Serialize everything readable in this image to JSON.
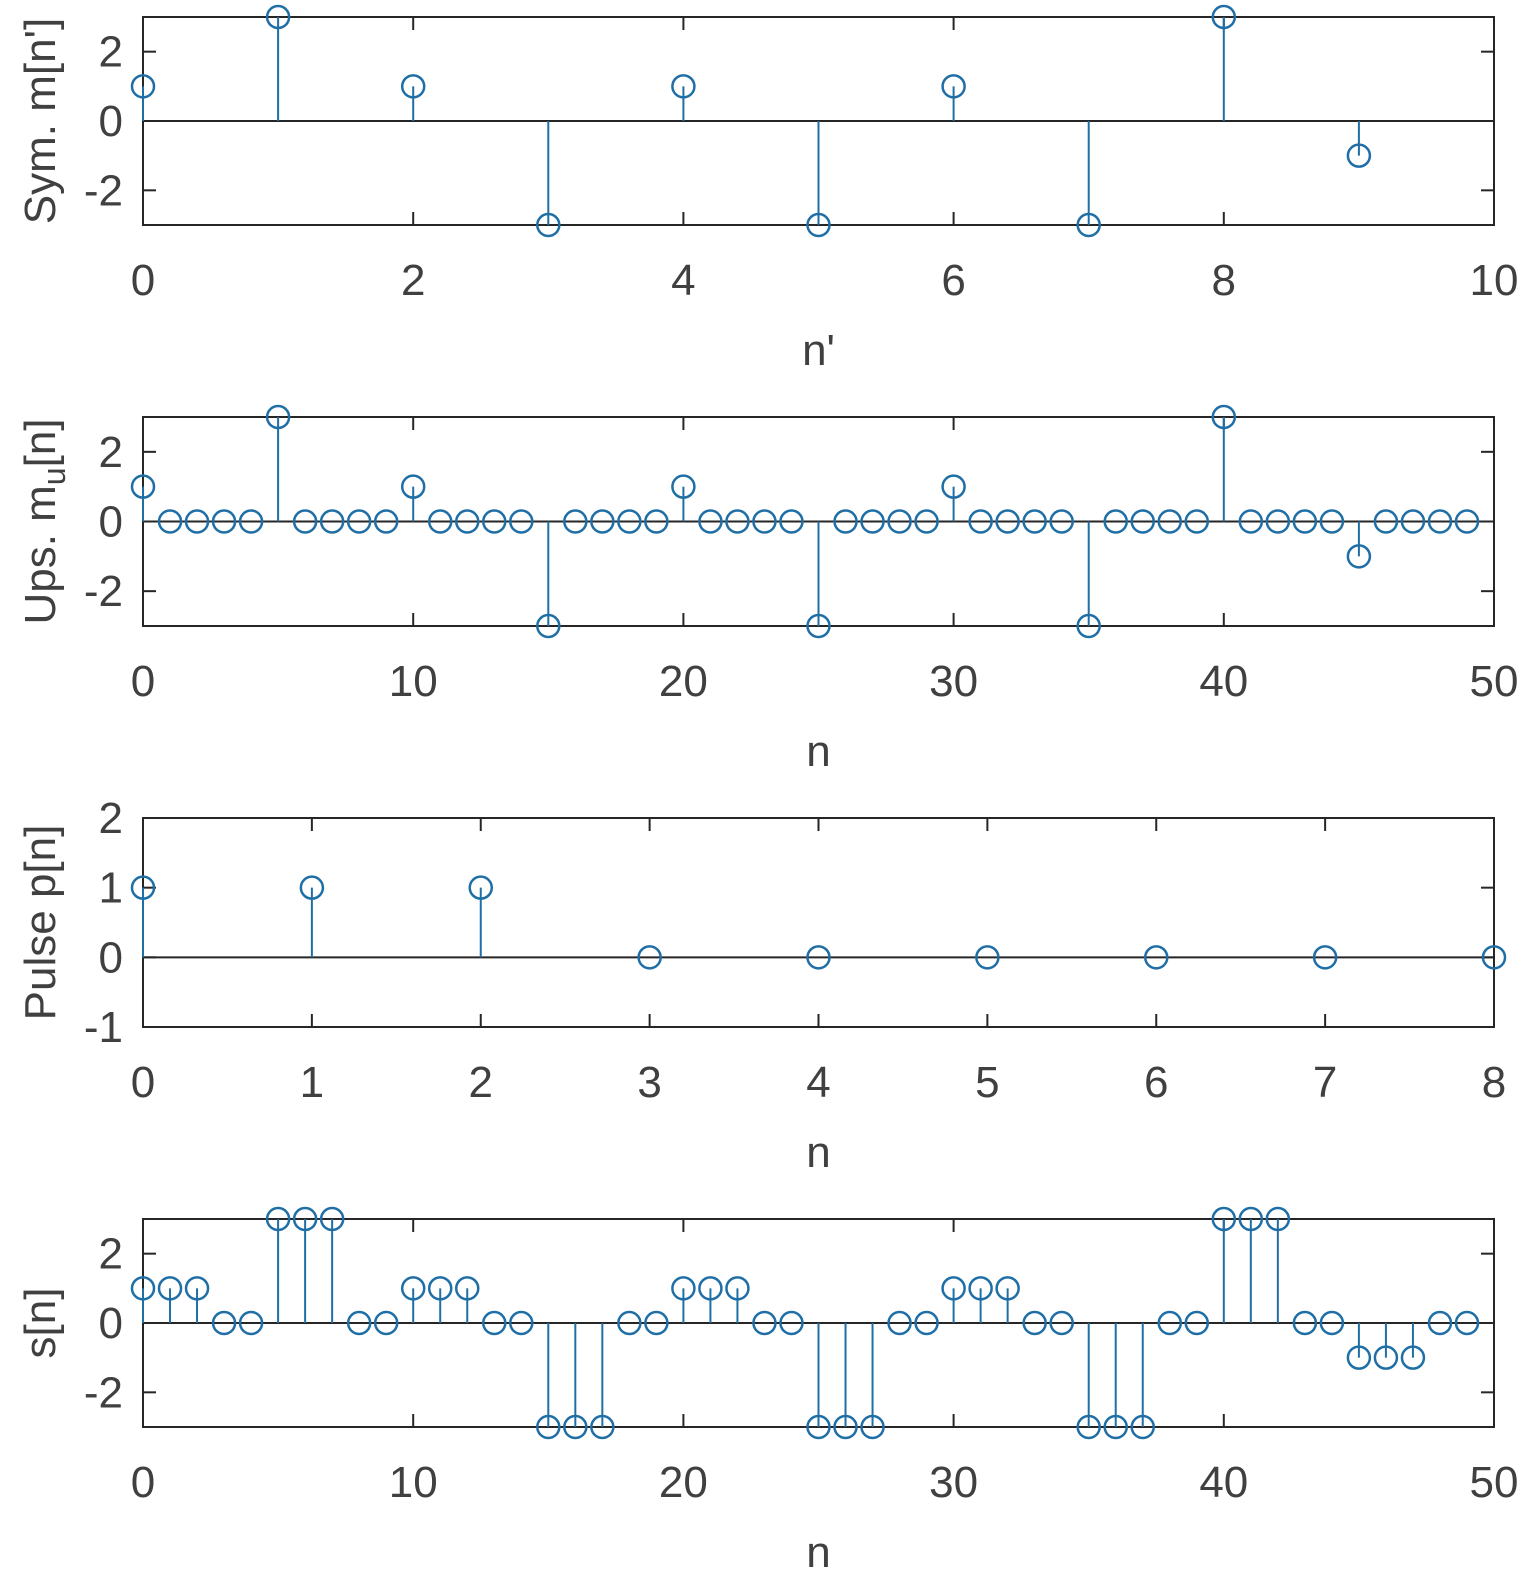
{
  "colors": {
    "series": "#1f6fa6",
    "axis": "#262626",
    "text": "#404040"
  },
  "chart_data": [
    {
      "type": "stem",
      "xlabel": "n'",
      "ylabel": "Sym. m[n']",
      "xlim": [
        0,
        10
      ],
      "ylim": [
        -3,
        3
      ],
      "xticks": [
        0,
        2,
        4,
        6,
        8,
        10
      ],
      "xtick_labels": [
        "0",
        "2",
        "4",
        "6",
        "8",
        "10"
      ],
      "yticks": [
        -2,
        0,
        2
      ],
      "ytick_labels": [
        "-2",
        "0",
        "2"
      ],
      "x": [
        0,
        1,
        2,
        3,
        4,
        5,
        6,
        7,
        8,
        9
      ],
      "values": [
        1,
        3,
        1,
        -3,
        1,
        -3,
        1,
        -3,
        3,
        -1
      ]
    },
    {
      "type": "stem",
      "xlabel": "n",
      "ylabel": "Ups. m",
      "ylabel_sub": "u",
      "ylabel_suffix": "[n]",
      "xlim": [
        0,
        50
      ],
      "ylim": [
        -3,
        3
      ],
      "xticks": [
        0,
        10,
        20,
        30,
        40,
        50
      ],
      "xtick_labels": [
        "0",
        "10",
        "20",
        "30",
        "40",
        "50"
      ],
      "yticks": [
        -2,
        0,
        2
      ],
      "ytick_labels": [
        "-2",
        "0",
        "2"
      ],
      "x": [
        0,
        1,
        2,
        3,
        4,
        5,
        6,
        7,
        8,
        9,
        10,
        11,
        12,
        13,
        14,
        15,
        16,
        17,
        18,
        19,
        20,
        21,
        22,
        23,
        24,
        25,
        26,
        27,
        28,
        29,
        30,
        31,
        32,
        33,
        34,
        35,
        36,
        37,
        38,
        39,
        40,
        41,
        42,
        43,
        44,
        45,
        46,
        47,
        48,
        49
      ],
      "values": [
        1,
        0,
        0,
        0,
        0,
        3,
        0,
        0,
        0,
        0,
        1,
        0,
        0,
        0,
        0,
        -3,
        0,
        0,
        0,
        0,
        1,
        0,
        0,
        0,
        0,
        -3,
        0,
        0,
        0,
        0,
        1,
        0,
        0,
        0,
        0,
        -3,
        0,
        0,
        0,
        0,
        3,
        0,
        0,
        0,
        0,
        -1,
        0,
        0,
        0,
        0
      ]
    },
    {
      "type": "stem",
      "xlabel": "n",
      "ylabel": "Pulse p[n]",
      "xlim": [
        0,
        8
      ],
      "ylim": [
        -1,
        2
      ],
      "xticks": [
        0,
        1,
        2,
        3,
        4,
        5,
        6,
        7,
        8
      ],
      "xtick_labels": [
        "0",
        "1",
        "2",
        "3",
        "4",
        "5",
        "6",
        "7",
        "8"
      ],
      "yticks": [
        -1,
        0,
        1,
        2
      ],
      "ytick_labels": [
        "-1",
        "0",
        "1",
        "2"
      ],
      "x": [
        0,
        1,
        2,
        3,
        4,
        5,
        6,
        7,
        8
      ],
      "values": [
        1,
        1,
        1,
        0,
        0,
        0,
        0,
        0,
        0
      ]
    },
    {
      "type": "stem",
      "xlabel": "n",
      "ylabel": "s[n]",
      "xlim": [
        0,
        50
      ],
      "ylim": [
        -3,
        3
      ],
      "xticks": [
        0,
        10,
        20,
        30,
        40,
        50
      ],
      "xtick_labels": [
        "0",
        "10",
        "20",
        "30",
        "40",
        "50"
      ],
      "yticks": [
        -2,
        0,
        2
      ],
      "ytick_labels": [
        "-2",
        "0",
        "2"
      ],
      "x": [
        0,
        1,
        2,
        3,
        4,
        5,
        6,
        7,
        8,
        9,
        10,
        11,
        12,
        13,
        14,
        15,
        16,
        17,
        18,
        19,
        20,
        21,
        22,
        23,
        24,
        25,
        26,
        27,
        28,
        29,
        30,
        31,
        32,
        33,
        34,
        35,
        36,
        37,
        38,
        39,
        40,
        41,
        42,
        43,
        44,
        45,
        46,
        47,
        48,
        49
      ],
      "values": [
        1,
        1,
        1,
        0,
        0,
        3,
        3,
        3,
        0,
        0,
        1,
        1,
        1,
        0,
        0,
        -3,
        -3,
        -3,
        0,
        0,
        1,
        1,
        1,
        0,
        0,
        -3,
        -3,
        -3,
        0,
        0,
        1,
        1,
        1,
        0,
        0,
        -3,
        -3,
        -3,
        0,
        0,
        3,
        3,
        3,
        0,
        0,
        -1,
        -1,
        -1,
        0,
        0
      ]
    }
  ]
}
